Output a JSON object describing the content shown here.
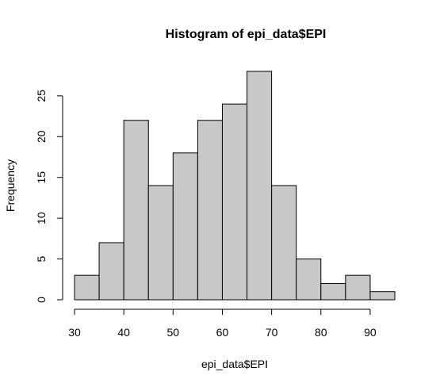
{
  "chart_data": {
    "type": "bar",
    "title": "Histogram of epi_data$EPI",
    "xlabel": "epi_data$EPI",
    "ylabel": "Frequency",
    "bins": [
      {
        "from": 30,
        "to": 35,
        "count": 3
      },
      {
        "from": 35,
        "to": 40,
        "count": 7
      },
      {
        "from": 40,
        "to": 45,
        "count": 22
      },
      {
        "from": 45,
        "to": 50,
        "count": 14
      },
      {
        "from": 50,
        "to": 55,
        "count": 18
      },
      {
        "from": 55,
        "to": 60,
        "count": 22
      },
      {
        "from": 60,
        "to": 65,
        "count": 24
      },
      {
        "from": 65,
        "to": 70,
        "count": 28
      },
      {
        "from": 70,
        "to": 75,
        "count": 14
      },
      {
        "from": 75,
        "to": 80,
        "count": 5
      },
      {
        "from": 80,
        "to": 85,
        "count": 2
      },
      {
        "from": 85,
        "to": 90,
        "count": 3
      },
      {
        "from": 90,
        "to": 95,
        "count": 1
      }
    ],
    "xlim": [
      30,
      95
    ],
    "ylim": [
      0,
      28
    ],
    "x_ticks": [
      "30",
      "40",
      "50",
      "60",
      "70",
      "80",
      "90"
    ],
    "y_ticks": [
      "0",
      "5",
      "10",
      "15",
      "20",
      "25"
    ],
    "bar_color": "#c8c8c8",
    "grid": false,
    "legend": "none"
  }
}
